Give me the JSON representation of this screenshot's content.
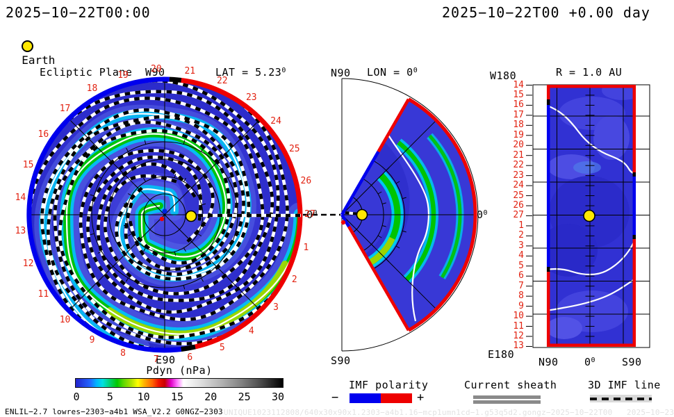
{
  "header": {
    "datetime_left": "2025−10−22T00:00",
    "datetime_right": "2025−10−22T00 +0.00 day",
    "earth_label": "Earth"
  },
  "deg_sup": "0",
  "panels": {
    "ecliptic": {
      "title": "Ecliptic Plane",
      "top_label": "W90",
      "bottom_label": "E90",
      "lat_label": "LAT = 5.23",
      "zero": "0",
      "day_labels": [
        "27",
        "26",
        "25",
        "24",
        "23",
        "22",
        "21",
        "20",
        "19",
        "18",
        "17",
        "16",
        "15",
        "14",
        "13",
        "12",
        "11",
        "10",
        "9",
        "8",
        "7",
        "6",
        "5",
        "4",
        "3",
        "2",
        "1"
      ]
    },
    "meridional": {
      "title_prefix": "LON = 0",
      "top_label": "N90",
      "bottom_label": "S90",
      "zero": "0"
    },
    "latmap": {
      "title": "R = 1.0 AU",
      "top_left_label": "W180",
      "bottom_left_label": "E180",
      "x_labels": [
        "N90",
        "0",
        "S90"
      ],
      "y_labels": [
        "14",
        "15",
        "16",
        "17",
        "18",
        "19",
        "20",
        "21",
        "22",
        "23",
        "24",
        "25",
        "26",
        "27",
        "1",
        "2",
        "3",
        "4",
        "5",
        "6",
        "7",
        "8",
        "9",
        "10",
        "11",
        "12",
        "13"
      ]
    }
  },
  "colorbar": {
    "title": "Pdyn (nPa)",
    "ticks": [
      "0",
      "5",
      "10",
      "15",
      "20",
      "25",
      "30"
    ]
  },
  "legends": {
    "imf": {
      "label": "IMF polarity",
      "minus": "−",
      "plus": "+"
    },
    "sheath": {
      "label": "Current sheath"
    },
    "imf3d": {
      "label": "3D IMF line"
    }
  },
  "footer": {
    "model": "ENLIL−2.7 lowres−2303−a4b1 WSA_V2.2 G0NGZ−2303",
    "watermark": "UNIQUE1023112808/640x30x90x1.2303−a4b1.16−mcp1umn1cd−1.g53q5d2.gongz−2025−10−22T00   2025−10−23"
  },
  "colors": {
    "polarity_negative": "#0000ee",
    "polarity_positive": "#ee0000",
    "earth_marker": "#ffe800",
    "axis_day_labels": "#e22211",
    "sheath_gray": "#8a8a8a"
  },
  "chart_data": {
    "type": "heatmap",
    "model": "WSA-ENLIL solar wind simulation snapshot",
    "timestamp": "2025-10-22T00:00",
    "forecast_label": "2025-10-22T00 +0.00 day",
    "quantity": "Pdyn (nPa)",
    "colorbar": {
      "ticks": [
        0,
        5,
        10,
        15,
        20,
        25,
        30
      ],
      "range": [
        0,
        30
      ]
    },
    "panels": [
      {
        "name": "ecliptic-plane",
        "type": "polar-heatmap",
        "title": "Ecliptic Plane",
        "sub_label": "LAT = 5.23 deg",
        "angular_labels": {
          "top": "W90",
          "bottom": "E90",
          "right": "0 deg"
        },
        "day_ticks_counterclockwise_from_right": [
          27,
          26,
          25,
          24,
          23,
          22,
          21,
          20,
          19,
          18,
          17,
          16,
          15,
          14,
          13,
          12,
          11,
          10,
          9,
          8,
          7,
          6,
          5,
          4,
          3,
          2,
          1
        ],
        "markers": [
          "Sun at center",
          "Earth yellow dot right of center"
        ],
        "overlays": [
          "rim colored by IMF polarity (blue negative left half, red positive right half)",
          "white current-sheath spiral lines",
          "black dashed 3D IMF spiral lines",
          "green/cyan high-pressure spiral arms on blue background"
        ]
      },
      {
        "name": "meridional-plane",
        "type": "polar-wedge-heatmap",
        "title": "LON = 0 deg",
        "angular_labels": {
          "top": "N90",
          "bottom": "S90",
          "right": "0 deg"
        },
        "markers": [
          "Sun at vertex",
          "Earth yellow dot near vertex"
        ],
        "overlays": [
          "red positive-polarity outer arc",
          "blue negative segment on upper edge",
          "white current sheath",
          "green high-pressure bands"
        ]
      },
      {
        "name": "constant-radius-map",
        "type": "latitude-time-heatmap",
        "title": "R = 1.0 AU",
        "x_axis_labels": [
          "N90",
          "0 deg",
          "S90"
        ],
        "corner_labels": {
          "top_left": "W180",
          "bottom_left": "E180"
        },
        "day_rows_top_to_bottom": [
          14,
          15,
          16,
          17,
          18,
          19,
          20,
          21,
          22,
          23,
          24,
          25,
          26,
          27,
          1,
          2,
          3,
          4,
          5,
          6,
          7,
          8,
          9,
          10,
          11,
          12,
          13
        ],
        "markers": [
          "Earth yellow dot at center (day 27, lon 0)"
        ],
        "overlays": [
          "white current-sheath traces",
          "border colored by IMF polarity"
        ]
      }
    ],
    "legend": [
      {
        "label": "IMF polarity",
        "negative_color": "#0000ee",
        "positive_color": "#ee0000"
      },
      {
        "label": "Current sheath",
        "style": "double gray line"
      },
      {
        "label": "3D IMF line",
        "style": "black dashes on gray"
      }
    ]
  }
}
